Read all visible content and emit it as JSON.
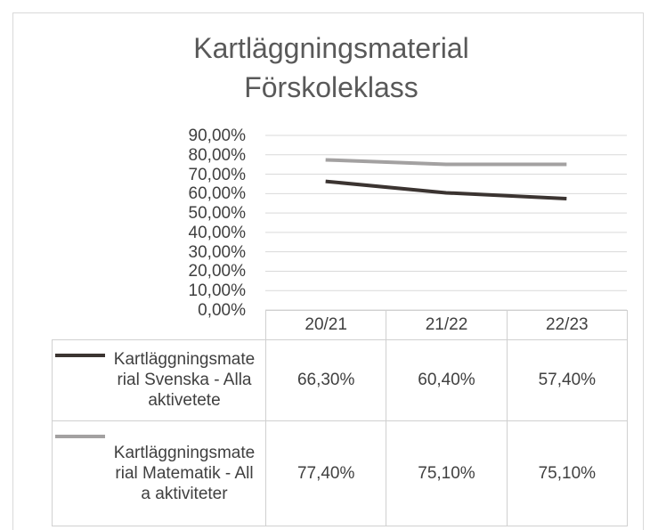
{
  "chart_data": {
    "type": "line",
    "title": "Kartläggningsmaterial Förskoleklass",
    "categories": [
      "20/21",
      "21/22",
      "22/23"
    ],
    "series": [
      {
        "name": "Kartläggningsmaterial Svenska - Alla aktivetete",
        "color": "#3b3431",
        "values": [
          66.3,
          60.4,
          57.4
        ],
        "value_labels": [
          "66,30%",
          "60,40%",
          "57,40%"
        ]
      },
      {
        "name": "Kartläggningsmaterial Matematik - Alla aktiviteter",
        "color": "#a3a1a1",
        "values": [
          77.4,
          75.1,
          75.1
        ],
        "value_labels": [
          "77,40%",
          "75,10%",
          "75,10%"
        ]
      }
    ],
    "ylim": [
      0,
      90
    ],
    "yticks": [
      {
        "value": 0,
        "label": "0,00%"
      },
      {
        "value": 10,
        "label": "10,00%"
      },
      {
        "value": 20,
        "label": "20,00%"
      },
      {
        "value": 30,
        "label": "30,00%"
      },
      {
        "value": 40,
        "label": "40,00%"
      },
      {
        "value": 50,
        "label": "50,00%"
      },
      {
        "value": 60,
        "label": "60,00%"
      },
      {
        "value": 70,
        "label": "70,00%"
      },
      {
        "value": 80,
        "label": "80,00%"
      },
      {
        "value": 90,
        "label": "90,00%"
      }
    ],
    "grid": true
  }
}
